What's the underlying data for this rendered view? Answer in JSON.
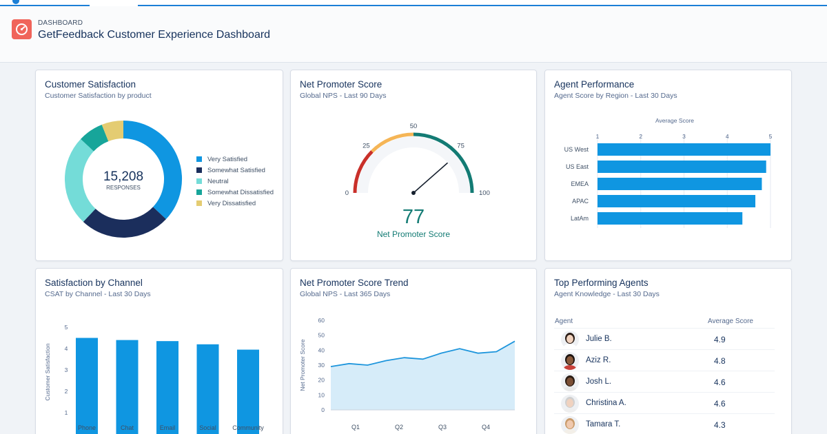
{
  "header": {
    "breadcrumb": "DASHBOARD",
    "title": "GetFeedback Customer Experience Dashboard",
    "logo_icon": "gauge-icon"
  },
  "colors": {
    "very_satisfied": "#0f96e1",
    "somewhat_satisfied": "#1b2e5c",
    "neutral": "#74dcd8",
    "somewhat_dissatisfied": "#17a59a",
    "very_dissatisfied": "#e4cc72",
    "bar_blue": "#0f96e1",
    "gauge_red": "#c9302a",
    "gauge_orange": "#f5b556",
    "gauge_teal": "#137b74",
    "nps_big": "#137b74"
  },
  "satisfaction": {
    "title": "Customer Satisfaction",
    "subtitle": "Customer Satisfaction by product",
    "center_value": "15,208",
    "center_label": "RESPONSES",
    "chart_data": {
      "type": "pie",
      "title": "Customer Satisfaction",
      "categories": [
        "Very Satisfied",
        "Somewhat Satisfied",
        "Neutral",
        "Somewhat Dissatisfied",
        "Very Dissatisfied"
      ],
      "values": [
        37,
        25,
        25,
        7,
        6
      ]
    }
  },
  "nps": {
    "title": "Net Promoter Score",
    "subtitle": "Global NPS - Last 90 Days",
    "value": "77",
    "label": "Net Promoter Score",
    "chart_data": {
      "type": "gauge",
      "value": 77,
      "min": 0,
      "max": 100,
      "ticks": [
        "0",
        "25",
        "50",
        "75",
        "100"
      ],
      "bands": [
        {
          "from": 0,
          "to": 25,
          "color": "#c9302a"
        },
        {
          "from": 25,
          "to": 50,
          "color": "#f5b556"
        },
        {
          "from": 50,
          "to": 100,
          "color": "#137b74"
        }
      ]
    }
  },
  "agent_perf": {
    "title": "Agent Performance",
    "subtitle": "Agent Score by Region - Last 30 Days",
    "chart_data": {
      "type": "bar",
      "orientation": "horizontal",
      "title": "Average Score",
      "categories": [
        "US West",
        "US East",
        "EMEA",
        "APAC",
        "LatAm"
      ],
      "values": [
        5.0,
        4.9,
        4.8,
        4.65,
        4.35
      ],
      "xlim": [
        1,
        5
      ],
      "ticks": [
        "1",
        "2",
        "3",
        "4",
        "5"
      ]
    }
  },
  "channel": {
    "title": "Satisfaction by Channel",
    "subtitle": "CSAT by Channel - Last 30 Days",
    "chart_data": {
      "type": "bar",
      "categories": [
        "Phone",
        "Chat",
        "Email",
        "Social",
        "Community"
      ],
      "values": [
        4.5,
        4.4,
        4.35,
        4.2,
        3.95
      ],
      "ylabel": "Customer Satisfaction",
      "ylim": [
        1,
        5
      ],
      "ticks": [
        "1",
        "2",
        "3",
        "4",
        "5"
      ]
    }
  },
  "trend": {
    "title": "Net Promoter Score Trend",
    "subtitle": "Global NPS - Last 365 Days",
    "chart_data": {
      "type": "area",
      "ylabel": "Net Promoter Score",
      "ylim": [
        0,
        60
      ],
      "yticks": [
        "0",
        "10",
        "20",
        "30",
        "40",
        "50",
        "60"
      ],
      "xticks": [
        "Q1",
        "Q2",
        "Q3",
        "Q4"
      ],
      "values": [
        29,
        31,
        30,
        33,
        35,
        34,
        38,
        41,
        38,
        39,
        46
      ]
    }
  },
  "top_agents": {
    "title": "Top Performing Agents",
    "subtitle": "Agent Knowledge - Last 30 Days",
    "col_agent": "Agent",
    "col_score": "Average Score",
    "rows": [
      {
        "name": "Julie B.",
        "score": "4.9",
        "skin": "#f1d3bf",
        "hair": "#2b1d16",
        "shirt": "#ffffff"
      },
      {
        "name": "Aziz R.",
        "score": "4.8",
        "skin": "#8a5a3c",
        "hair": "#1e1410",
        "shirt": "#c8413a"
      },
      {
        "name": "Josh L.",
        "score": "4.6",
        "skin": "#7b4f35",
        "hair": "#2a1c14",
        "shirt": "#e8e8e8"
      },
      {
        "name": "Christina A.",
        "score": "4.6",
        "skin": "#f0d2bf",
        "hair": "#cfcfcf",
        "shirt": "#eeeeee"
      },
      {
        "name": "Tamara T.",
        "score": "4.3",
        "skin": "#f0c9ae",
        "hair": "#c99b6b",
        "shirt": "#f3efe8"
      }
    ]
  }
}
